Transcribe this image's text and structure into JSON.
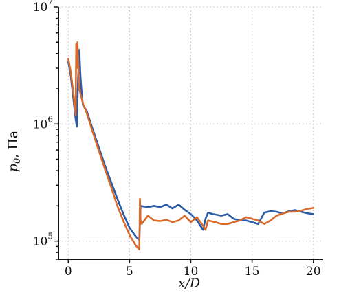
{
  "chart_data": {
    "type": "line",
    "xlabel": "x/D",
    "ylabel": "p0, Па",
    "ylabel_parts": {
      "var": "p",
      "sub": "0",
      "rest": ", Па"
    },
    "xlim": [
      -0.8,
      20.8
    ],
    "ylim": [
      70000,
      10000000
    ],
    "yscale": "log",
    "grid": true,
    "legend": "none",
    "xticks": [
      0,
      5,
      10,
      15,
      20
    ],
    "xtick_labels": [
      "0",
      "5",
      "10",
      "15",
      "20"
    ],
    "yticks": [
      100000,
      1000000,
      10000000
    ],
    "ytick_labels": [
      {
        "base": "10",
        "exp": "5"
      },
      {
        "base": "10",
        "exp": "6"
      },
      {
        "base": "10",
        "exp": "7"
      }
    ],
    "series": [
      {
        "color": "#2a5ba8",
        "points": [
          [
            0.0,
            3400000
          ],
          [
            0.2,
            2600000
          ],
          [
            0.4,
            1700000
          ],
          [
            0.6,
            1100000
          ],
          [
            0.7,
            950000
          ],
          [
            0.8,
            2400000
          ],
          [
            0.9,
            4300000
          ],
          [
            1.0,
            2500000
          ],
          [
            1.1,
            1800000
          ],
          [
            1.2,
            1450000
          ],
          [
            1.5,
            1300000
          ],
          [
            2.0,
            900000
          ],
          [
            2.5,
            630000
          ],
          [
            3.0,
            440000
          ],
          [
            3.5,
            320000
          ],
          [
            4.0,
            230000
          ],
          [
            4.5,
            170000
          ],
          [
            5.0,
            130000
          ],
          [
            5.5,
            110000
          ],
          [
            5.8,
            102000
          ],
          [
            5.9,
            200000
          ],
          [
            6.5,
            195000
          ],
          [
            7.0,
            200000
          ],
          [
            7.5,
            195000
          ],
          [
            8.0,
            205000
          ],
          [
            8.5,
            190000
          ],
          [
            9.0,
            205000
          ],
          [
            9.5,
            185000
          ],
          [
            10.0,
            170000
          ],
          [
            10.5,
            150000
          ],
          [
            11.0,
            125000
          ],
          [
            11.2,
            155000
          ],
          [
            11.4,
            175000
          ],
          [
            11.8,
            170000
          ],
          [
            12.5,
            165000
          ],
          [
            13.0,
            170000
          ],
          [
            13.5,
            155000
          ],
          [
            14.0,
            150000
          ],
          [
            14.5,
            150000
          ],
          [
            15.0,
            145000
          ],
          [
            15.5,
            140000
          ],
          [
            16.0,
            175000
          ],
          [
            16.5,
            180000
          ],
          [
            17.0,
            178000
          ],
          [
            17.5,
            172000
          ],
          [
            18.0,
            180000
          ],
          [
            18.5,
            184000
          ],
          [
            19.0,
            178000
          ],
          [
            19.5,
            173000
          ],
          [
            20.0,
            170000
          ]
        ]
      },
      {
        "color": "#d96a2b",
        "points": [
          [
            0.0,
            3600000
          ],
          [
            0.2,
            2800000
          ],
          [
            0.4,
            1900000
          ],
          [
            0.6,
            1200000
          ],
          [
            0.65,
            4800000
          ],
          [
            0.7,
            3000000
          ],
          [
            0.75,
            5000000
          ],
          [
            0.9,
            2000000
          ],
          [
            1.0,
            1800000
          ],
          [
            1.2,
            1500000
          ],
          [
            1.5,
            1250000
          ],
          [
            2.0,
            850000
          ],
          [
            2.5,
            590000
          ],
          [
            3.0,
            410000
          ],
          [
            3.5,
            290000
          ],
          [
            4.0,
            200000
          ],
          [
            4.5,
            148000
          ],
          [
            5.0,
            113000
          ],
          [
            5.5,
            92000
          ],
          [
            5.8,
            85000
          ],
          [
            5.85,
            230000
          ],
          [
            5.9,
            150000
          ],
          [
            6.0,
            140000
          ],
          [
            6.5,
            165000
          ],
          [
            7.0,
            150000
          ],
          [
            7.5,
            148000
          ],
          [
            8.0,
            152000
          ],
          [
            8.5,
            145000
          ],
          [
            9.0,
            150000
          ],
          [
            9.5,
            165000
          ],
          [
            10.0,
            145000
          ],
          [
            10.5,
            160000
          ],
          [
            11.0,
            135000
          ],
          [
            11.2,
            125000
          ],
          [
            11.4,
            150000
          ],
          [
            12.0,
            145000
          ],
          [
            12.5,
            140000
          ],
          [
            13.0,
            140000
          ],
          [
            13.5,
            145000
          ],
          [
            14.0,
            150000
          ],
          [
            14.5,
            160000
          ],
          [
            15.0,
            155000
          ],
          [
            15.5,
            150000
          ],
          [
            16.0,
            140000
          ],
          [
            16.5,
            150000
          ],
          [
            17.0,
            165000
          ],
          [
            17.5,
            172000
          ],
          [
            18.0,
            178000
          ],
          [
            18.5,
            178000
          ],
          [
            19.0,
            182000
          ],
          [
            19.5,
            188000
          ],
          [
            20.0,
            192000
          ]
        ]
      }
    ]
  }
}
